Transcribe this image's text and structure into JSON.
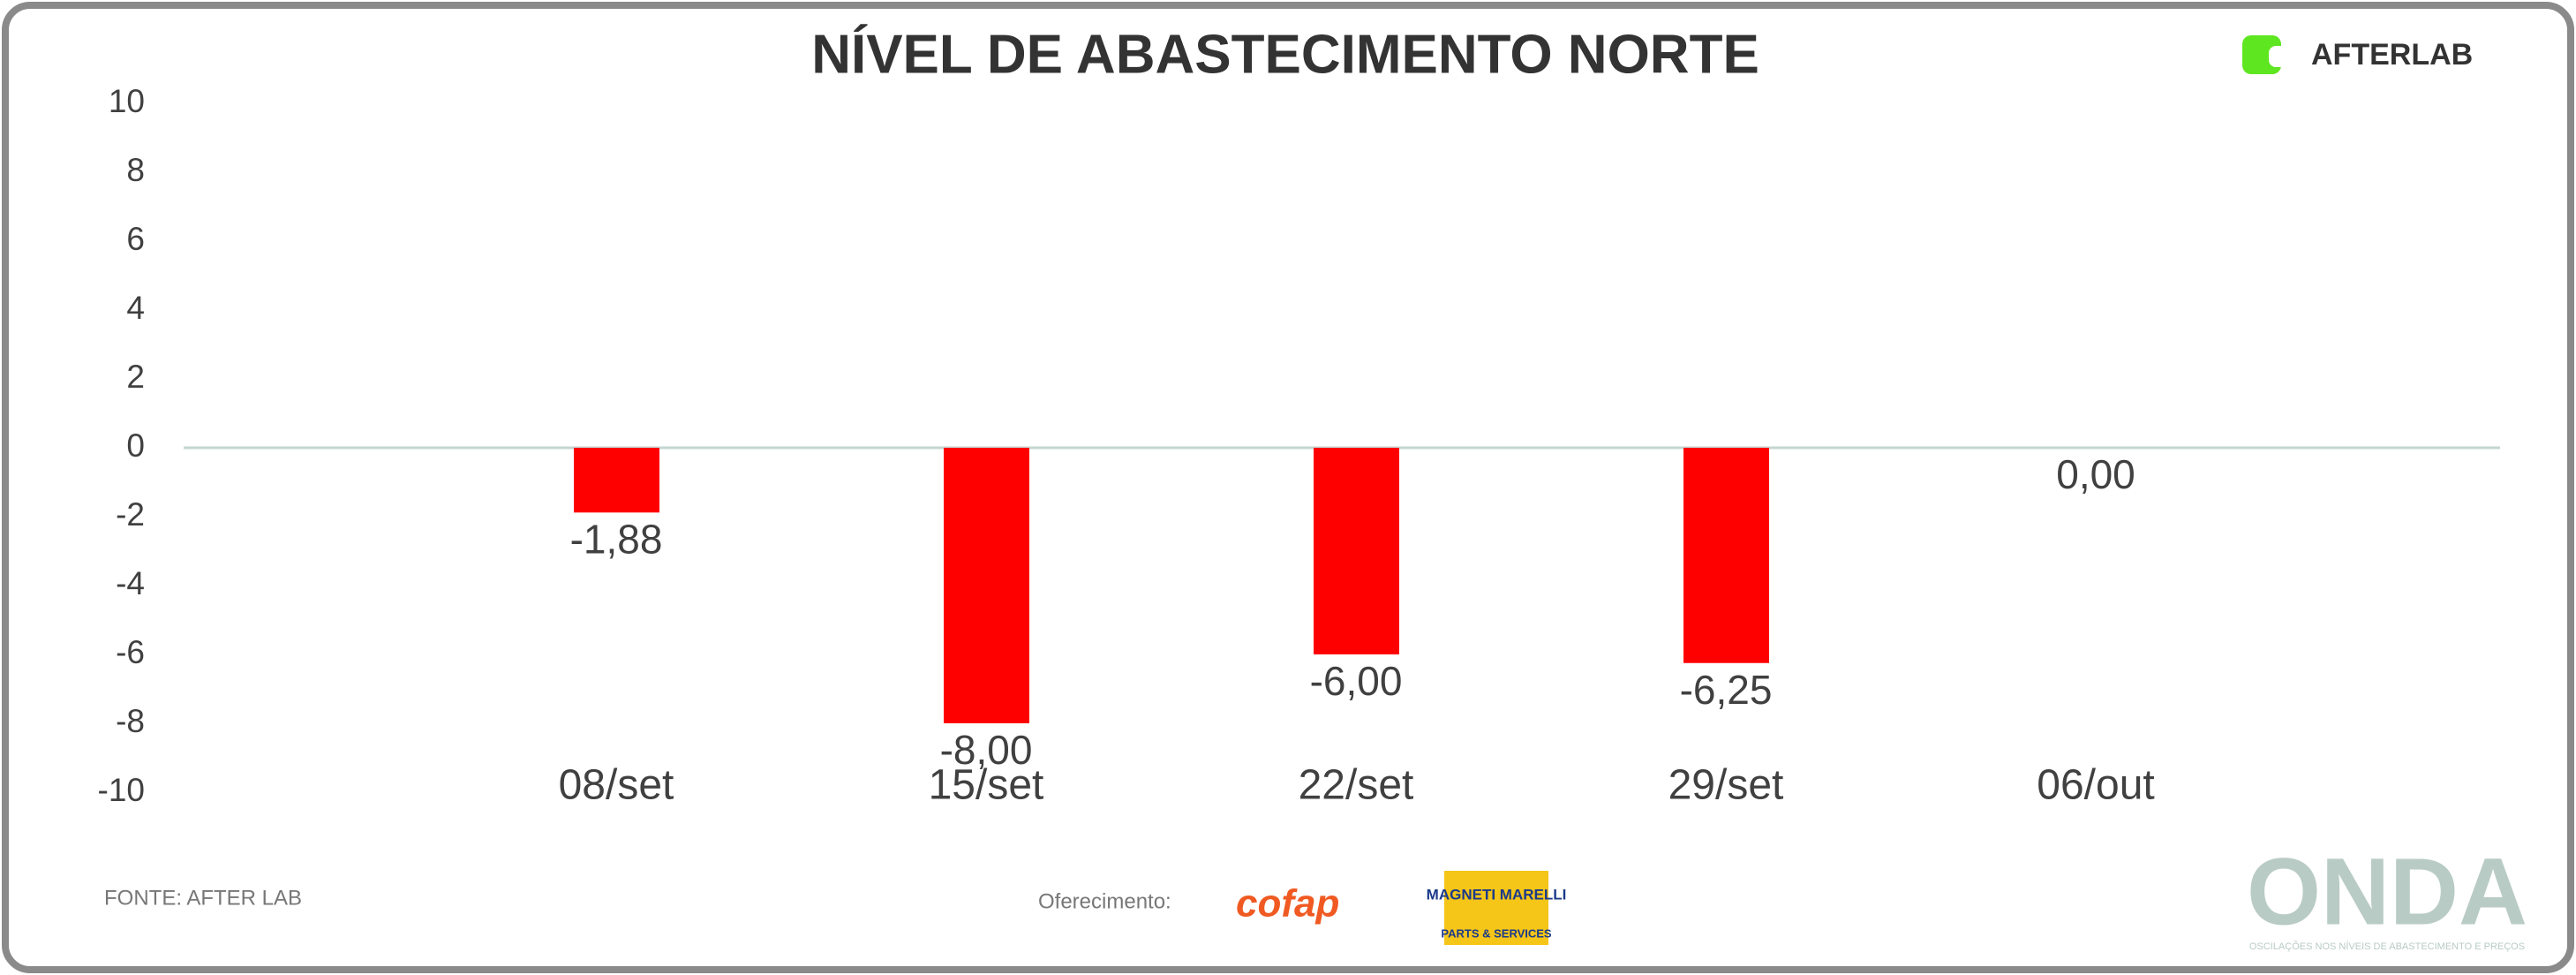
{
  "chart_data": {
    "type": "bar",
    "title": "NÍVEL DE ABASTECIMENTO NORTE",
    "categories": [
      "08/set",
      "15/set",
      "22/set",
      "29/set",
      "06/out"
    ],
    "values": [
      -1.88,
      -8.0,
      -6.0,
      -6.25,
      0.0
    ],
    "value_labels": [
      "-1,88",
      "-8,00",
      "-6,00",
      "-6,25",
      "0,00"
    ],
    "color": "#ff0000",
    "ylim": [
      -10,
      10
    ],
    "yticks": [
      -10,
      -8,
      -6,
      -4,
      -2,
      0,
      2,
      4,
      6,
      8,
      10
    ],
    "grid": false
  },
  "branding": {
    "logo": "AFTERLAB",
    "source": "FONTE: AFTER LAB",
    "sponsor_label": "Oferecimento:",
    "sponsors": [
      "cofap",
      "MAGNETI MARELLI",
      "PARTS & SERVICES"
    ],
    "brand": "ONDA",
    "brand_tagline": "OSCILAÇÕES NOS NÍVEIS DE ABASTECIMENTO E PREÇOS"
  }
}
